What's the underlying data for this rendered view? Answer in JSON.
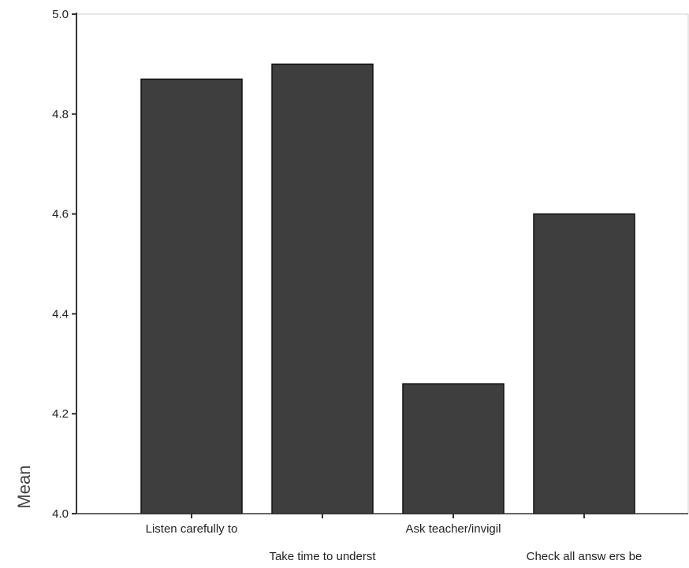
{
  "chart_data": {
    "type": "bar",
    "title": "",
    "xlabel": "",
    "ylabel": "Mean",
    "ylim": [
      4.0,
      5.0
    ],
    "yticks": [
      "4.0",
      "4.2",
      "4.4",
      "4.6",
      "4.8",
      "5.0"
    ],
    "categories": [
      "Listen carefully to",
      "Take time to underst",
      "Ask  teacher/invigil",
      "Check all answ ers be"
    ],
    "values": [
      4.87,
      4.9,
      4.26,
      4.6
    ],
    "bar_color": "#3e3e3e",
    "bar_edge_color": "#111111",
    "axis_color": "#333333",
    "grid": false,
    "legend": "none"
  }
}
